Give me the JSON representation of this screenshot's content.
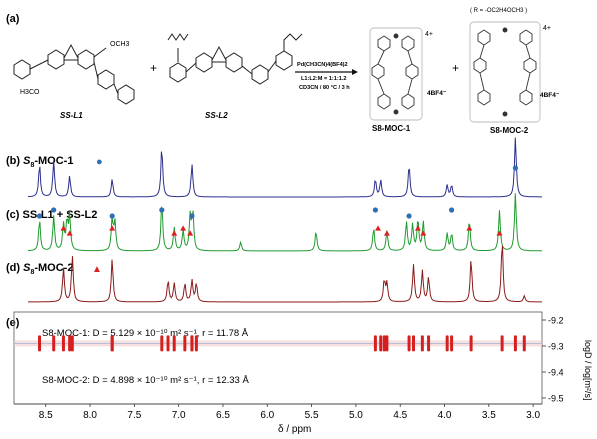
{
  "scheme": {
    "panel_label": "(a)",
    "ligand1_label": "SS-L1",
    "ligand2_label": "SS-L2",
    "plus": "+",
    "ome_label": "OCH3",
    "h3co_label": "H3CO",
    "arrow_top": "Pd(CH3CN)4(BF4)2",
    "arrow_mid": "L1:L2:M = 1:1:1.2",
    "arrow_bot": "CD3CN / 80 °C / 3 h",
    "moc1_label": "S8-MOC-1",
    "moc2_label": "S8-MOC-2",
    "moc1_counter": "4BF4⁻",
    "moc2_counter": "4BF4⁻",
    "charge": "4+",
    "r_def": "( R = -OC2H4OCH3 )"
  },
  "spectra": {
    "b": {
      "label_a": "(b) ",
      "label_b": "S",
      "label_c": "8",
      "label_d": "-MOC-1",
      "marker": "●",
      "color": "#2c2f8c"
    },
    "c": {
      "label": "(c) SS-L1 + SS-L2",
      "color": "#1f9a2e"
    },
    "d": {
      "label_a": "(d) ",
      "label_b": "S",
      "label_c": "8",
      "label_d": "-MOC-2",
      "marker": "▲",
      "color": "#8b1a1a"
    },
    "e": {
      "label": "(e)"
    }
  },
  "dosy": {
    "moc1_line": "S8-MOC-1: D = 5.129 × 10⁻¹⁰ m² s⁻¹, r = 11.78 Å",
    "moc2_line": "S8-MOC-2: D = 4.898 × 10⁻¹⁰ m² s⁻¹, r = 12.33 Å",
    "moc1_color": "#3a6fb0",
    "moc2_color": "#e02020"
  },
  "chart_data": {
    "type": "nmr-spectrum",
    "xlabel": "δ / ppm",
    "xlim": [
      8.7,
      2.9
    ],
    "x_ticks": [
      "8.5",
      "8.0",
      "7.5",
      "7.0",
      "6.5",
      "6.0",
      "5.5",
      "5.0",
      "4.5",
      "4.0",
      "3.5",
      "3.0"
    ],
    "y2label": "logD / log[m²/s]",
    "y2lim": [
      -9.5,
      -9.2
    ],
    "y2_ticks": [
      "-9.2",
      "-9.3",
      "-9.4",
      "-9.5"
    ],
    "series": [
      {
        "name": "S8-MOC-1",
        "peaks": [
          [
            8.57,
            0.55
          ],
          [
            8.41,
            0.6
          ],
          [
            8.23,
            0.35
          ],
          [
            7.75,
            0.3
          ],
          [
            7.19,
            0.85
          ],
          [
            6.85,
            0.55
          ],
          [
            4.78,
            0.3
          ],
          [
            4.72,
            0.28
          ],
          [
            4.4,
            0.55
          ],
          [
            3.97,
            0.2
          ],
          [
            3.92,
            0.2
          ],
          [
            3.2,
            1.0
          ]
        ]
      },
      {
        "name": "SS-L1 + SS-L2",
        "peaks": [
          [
            8.57,
            0.55
          ],
          [
            8.41,
            0.6
          ],
          [
            8.3,
            0.45
          ],
          [
            8.26,
            0.5
          ],
          [
            8.23,
            0.6
          ],
          [
            7.75,
            0.55
          ],
          [
            7.72,
            0.5
          ],
          [
            7.19,
            0.85
          ],
          [
            7.05,
            0.4
          ],
          [
            6.95,
            0.35
          ],
          [
            6.87,
            0.6
          ],
          [
            6.84,
            0.65
          ],
          [
            6.3,
            0.15
          ],
          [
            5.45,
            0.35
          ],
          [
            4.8,
            0.4
          ],
          [
            4.65,
            0.35
          ],
          [
            4.43,
            0.5
          ],
          [
            4.36,
            0.45
          ],
          [
            4.3,
            0.55
          ],
          [
            4.24,
            0.5
          ],
          [
            3.97,
            0.3
          ],
          [
            3.92,
            0.3
          ],
          [
            3.72,
            0.55
          ],
          [
            3.38,
            0.7
          ],
          [
            3.2,
            1.0
          ]
        ]
      },
      {
        "name": "S8-MOC-2",
        "peaks": [
          [
            8.3,
            0.55
          ],
          [
            8.2,
            0.75
          ],
          [
            7.75,
            0.7
          ],
          [
            7.12,
            0.35
          ],
          [
            7.05,
            0.3
          ],
          [
            6.93,
            0.3
          ],
          [
            6.85,
            0.35
          ],
          [
            6.8,
            0.3
          ],
          [
            4.68,
            0.35
          ],
          [
            4.65,
            0.3
          ],
          [
            4.35,
            0.6
          ],
          [
            4.25,
            0.5
          ],
          [
            4.18,
            0.4
          ],
          [
            3.7,
            0.7
          ],
          [
            3.35,
            1.0
          ],
          [
            3.1,
            0.1
          ]
        ]
      }
    ],
    "markers": {
      "moc1": [
        8.57,
        8.41,
        7.75,
        7.19,
        6.85,
        4.78,
        4.4,
        3.92
      ],
      "moc2": [
        8.3,
        8.23,
        7.75,
        7.05,
        6.95,
        6.87,
        4.75,
        4.65,
        4.3,
        4.24,
        3.72,
        3.38
      ]
    },
    "dosy_bands": {
      "moc1_logD": -9.29,
      "moc2_logD": -9.31
    }
  }
}
